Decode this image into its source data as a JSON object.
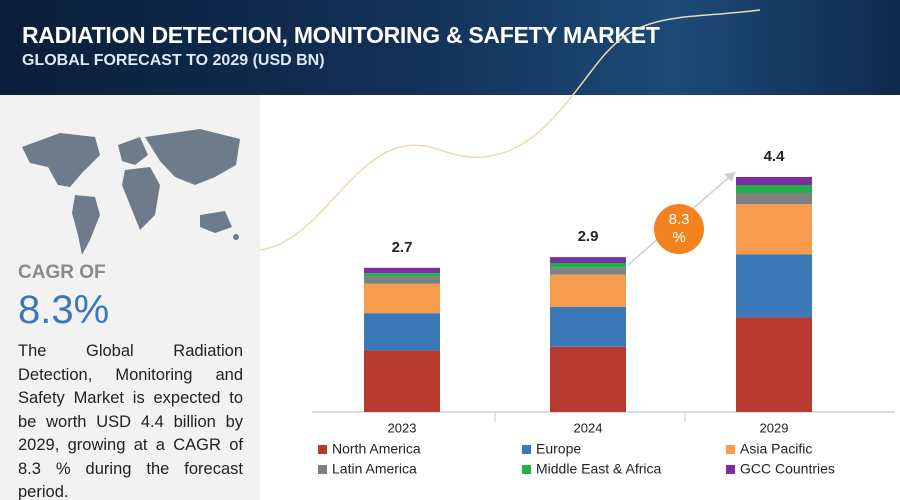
{
  "header": {
    "title": "RADIATION DETECTION, MONITORING & SAFETY MARKET",
    "subtitle": "GLOBAL FORECAST TO 2029 (USD BN)"
  },
  "sidebar": {
    "cagr_label": "CAGR OF",
    "cagr_value": "8.3%",
    "description": "The Global Radiation Detection, Monitoring and Safety Market is expected to be worth USD 4.4 billion by 2029, growing at a CAGR of 8.3 % during the forecast period."
  },
  "chart_data": {
    "type": "stacked_bar",
    "categories": [
      "2023",
      "2024",
      "2029"
    ],
    "totals": [
      2.7,
      2.9,
      4.4
    ],
    "cagr_badge": "8.3 %",
    "series": [
      {
        "name": "North America",
        "color": "#b73a2f",
        "values": [
          1.15,
          1.22,
          1.77
        ]
      },
      {
        "name": "Europe",
        "color": "#3a78b8",
        "values": [
          0.7,
          0.75,
          1.18
        ]
      },
      {
        "name": "Asia Pacific",
        "color": "#f79c4e",
        "values": [
          0.55,
          0.6,
          0.94
        ]
      },
      {
        "name": "Latin America",
        "color": "#808080",
        "values": [
          0.13,
          0.13,
          0.21
        ]
      },
      {
        "name": "Middle East & Africa",
        "color": "#22b04b",
        "values": [
          0.07,
          0.09,
          0.15
        ]
      },
      {
        "name": "GCC Countries",
        "color": "#7b2fa0",
        "values": [
          0.1,
          0.11,
          0.15
        ]
      }
    ]
  }
}
